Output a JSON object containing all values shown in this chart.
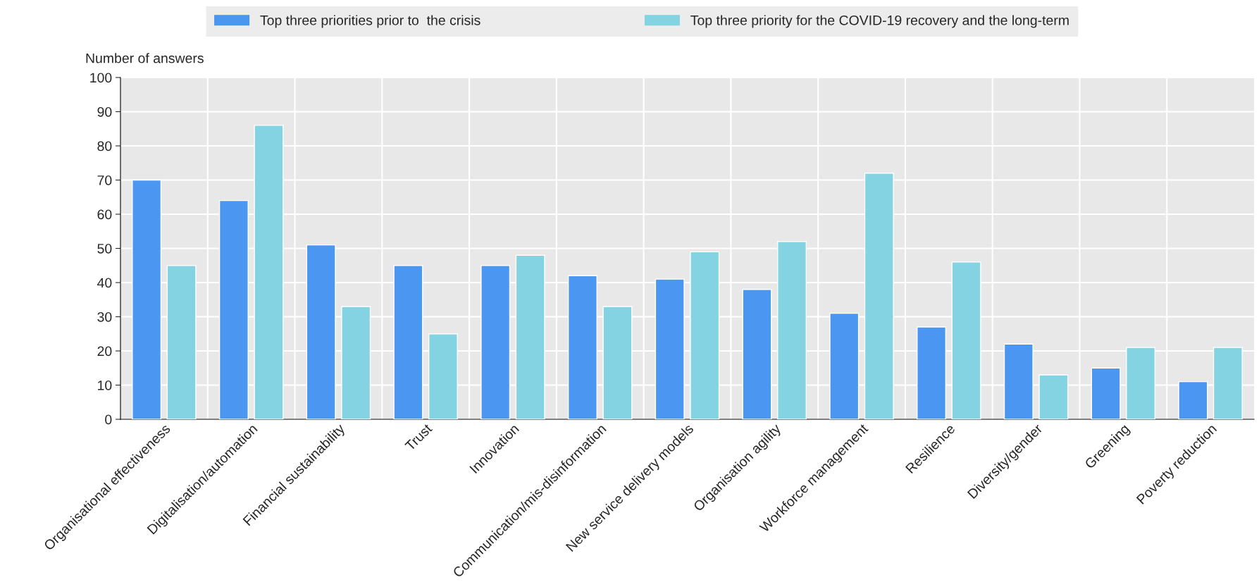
{
  "chart_data": {
    "type": "bar",
    "ylabel": "Number of answers",
    "categories": [
      "Organisational effectiveness",
      "Digitalisation/automation",
      "Financial sustainability",
      "Trust",
      "Innovation",
      "Communication/mis-disinformation",
      "New service delivery models",
      "Organisation agility",
      "Workforce management",
      "Resilience",
      "Diversity/gender",
      "Greening",
      "Poverty reduction"
    ],
    "series": [
      {
        "name": "Top three priorities prior to  the crisis",
        "color": "#4a96f0",
        "values": [
          70,
          64,
          51,
          45,
          45,
          42,
          41,
          38,
          31,
          27,
          22,
          15,
          11
        ]
      },
      {
        "name": "Top three priority for the COVID-19 recovery and the long-term",
        "color": "#84d3e3",
        "values": [
          45,
          86,
          33,
          25,
          48,
          33,
          49,
          52,
          72,
          46,
          13,
          21,
          21
        ]
      }
    ],
    "ylim": [
      0,
      100
    ],
    "yticks": [
      0,
      10,
      20,
      30,
      40,
      50,
      60,
      70,
      80,
      90,
      100
    ],
    "grid": true,
    "legend": "top"
  }
}
